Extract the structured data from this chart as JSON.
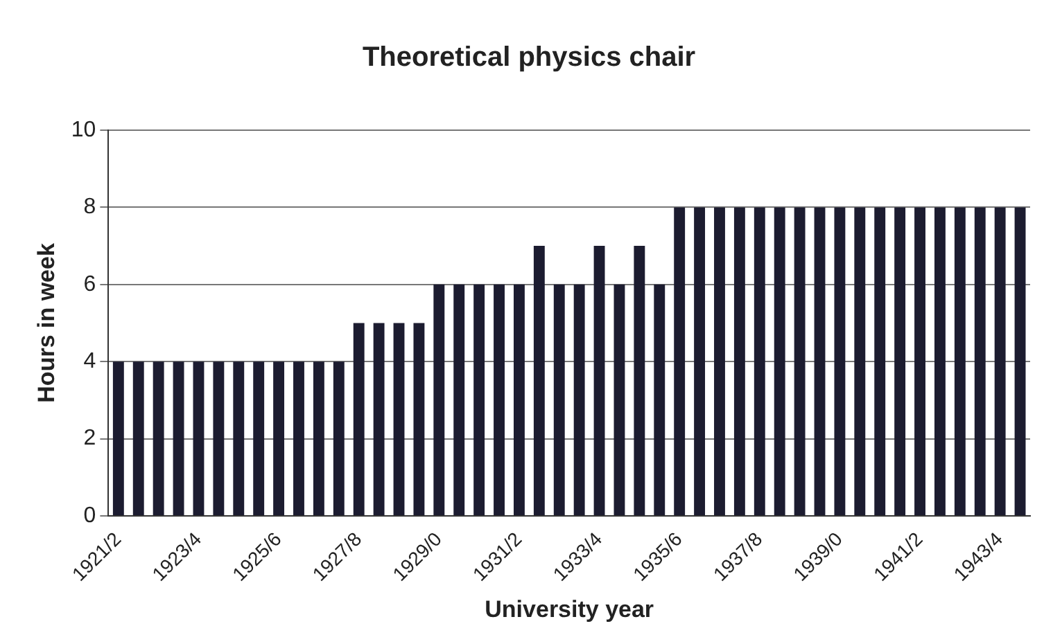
{
  "chart_data": {
    "type": "bar",
    "title": "Theoretical physics chair",
    "xlabel": "University year",
    "ylabel": "Hours in week",
    "categories": [
      "1921/2",
      null,
      null,
      null,
      "1923/4",
      null,
      null,
      null,
      "1925/6",
      null,
      null,
      null,
      "1927/8",
      null,
      null,
      null,
      "1929/0",
      null,
      null,
      null,
      "1931/2",
      null,
      null,
      null,
      "1933/4",
      null,
      null,
      null,
      "1935/6",
      null,
      null,
      null,
      "1937/8",
      null,
      null,
      null,
      "1939/0",
      null,
      null,
      null,
      "1941/2",
      null,
      null,
      null,
      "1943/4",
      null
    ],
    "values": [
      4,
      4,
      4,
      4,
      4,
      4,
      4,
      4,
      4,
      4,
      4,
      4,
      5,
      5,
      5,
      5,
      6,
      6,
      6,
      6,
      6,
      7,
      6,
      6,
      7,
      6,
      7,
      6,
      8,
      8,
      8,
      8,
      8,
      8,
      8,
      8,
      8,
      8,
      8,
      8,
      8,
      8,
      8,
      8,
      8,
      8
    ],
    "color": "#1c1c30",
    "ylim": [
      0,
      10
    ],
    "yticks": [
      0,
      2,
      4,
      6,
      8,
      10
    ],
    "grid": "y"
  }
}
